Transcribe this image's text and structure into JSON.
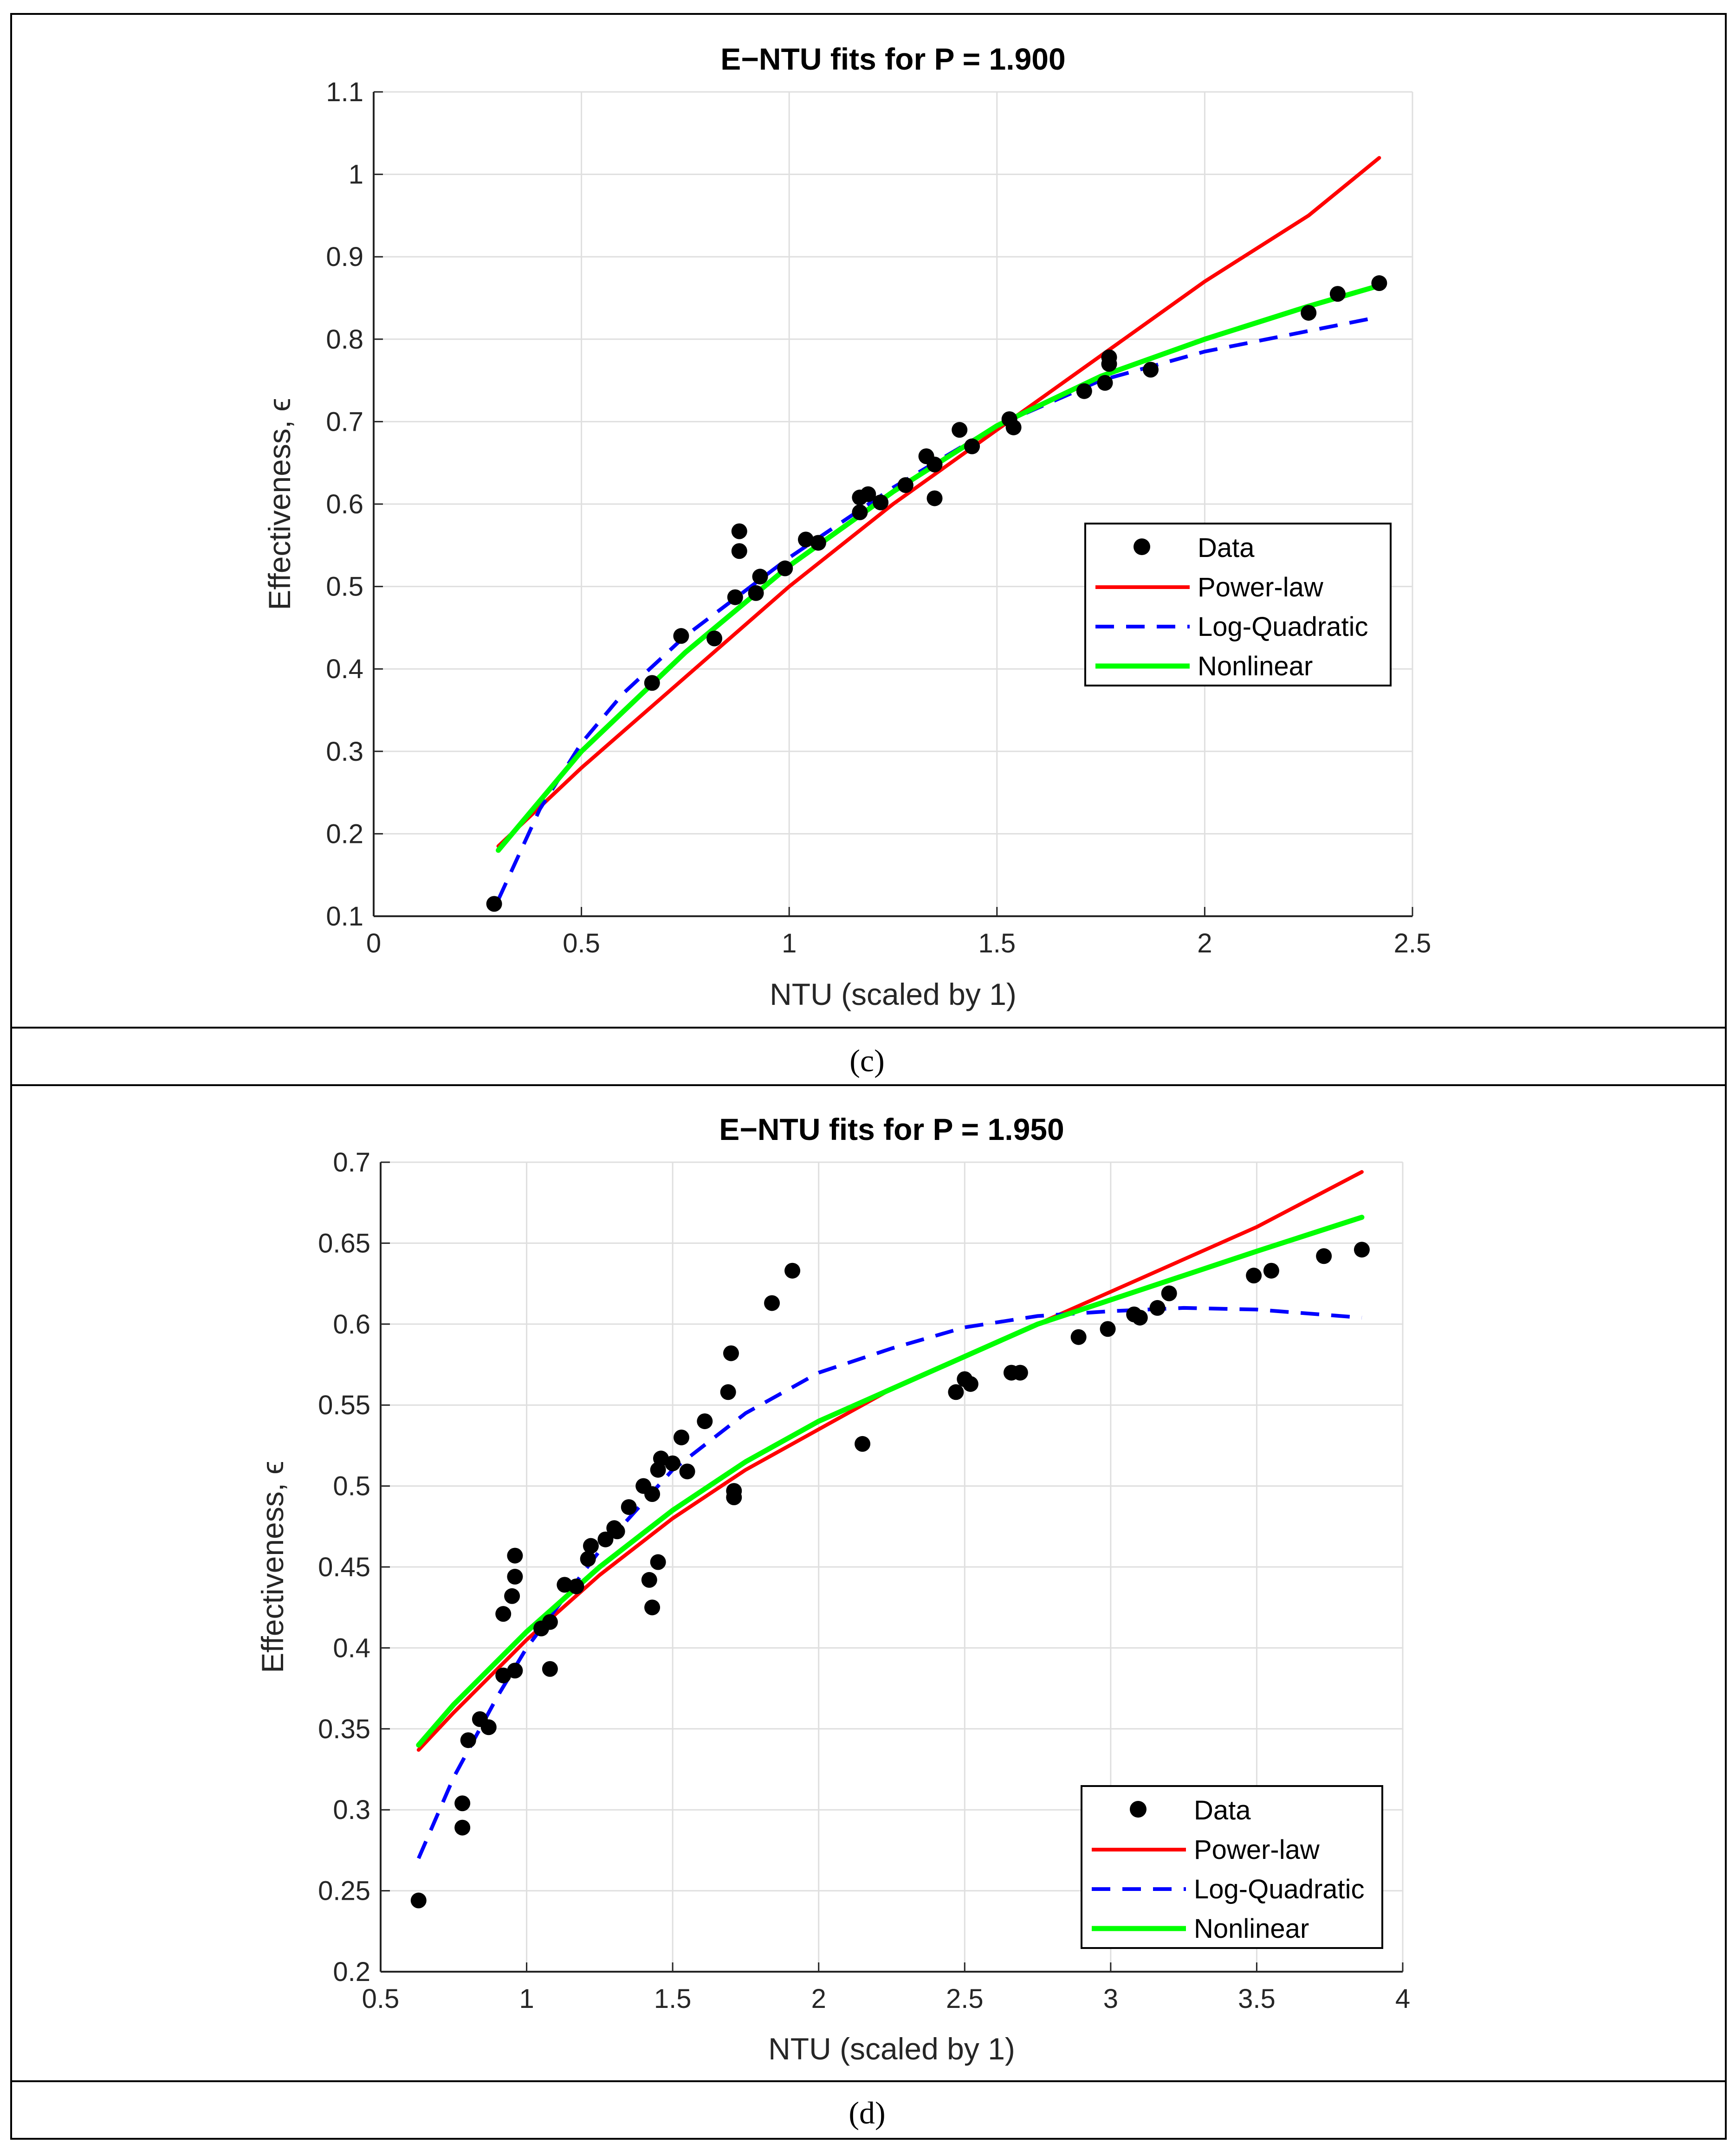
{
  "chart_data": [
    {
      "id": "c",
      "type": "scatter",
      "caption": "(c)",
      "title": "E−NTU fits for P = 1.900",
      "xlabel": "NTU (scaled by 1)",
      "ylabel": "Effectiveness, ϵ",
      "xlim": [
        0,
        2.5
      ],
      "ylim": [
        0.1,
        1.1
      ],
      "xticks": [
        0,
        0.5,
        1,
        1.5,
        2,
        2.5
      ],
      "xtick_labels": [
        "0",
        "0.5",
        "1",
        "1.5",
        "2",
        "2.5"
      ],
      "yticks": [
        0.1,
        0.2,
        0.3,
        0.4,
        0.5,
        0.6,
        0.7,
        0.8,
        0.9,
        1,
        1.1
      ],
      "ytick_labels": [
        "0.1",
        "0.2",
        "0.3",
        "0.4",
        "0.5",
        "0.6",
        "0.7",
        "0.8",
        "0.9",
        "1",
        "1.1"
      ],
      "grid": true,
      "legend_position": "center-right",
      "legend": [
        "Data",
        "Power-law",
        "Log-Quadratic",
        "Nonlinear"
      ],
      "data": {
        "x": [
          0.29,
          0.67,
          0.74,
          0.82,
          0.87,
          0.88,
          0.88,
          0.92,
          0.93,
          0.99,
          1.04,
          1.07,
          1.17,
          1.17,
          1.19,
          1.22,
          1.28,
          1.33,
          1.35,
          1.35,
          1.41,
          1.44,
          1.53,
          1.54,
          1.71,
          1.76,
          1.77,
          1.77,
          1.87,
          2.25,
          2.32,
          2.42
        ],
        "y": [
          0.115,
          0.383,
          0.44,
          0.437,
          0.487,
          0.567,
          0.543,
          0.492,
          0.512,
          0.522,
          0.557,
          0.553,
          0.59,
          0.608,
          0.612,
          0.602,
          0.623,
          0.658,
          0.607,
          0.648,
          0.69,
          0.67,
          0.703,
          0.693,
          0.737,
          0.747,
          0.778,
          0.77,
          0.763,
          0.832,
          0.855,
          0.868
        ]
      },
      "series": [
        {
          "name": "Power-law",
          "color": "#ff0000",
          "style": "solid",
          "x": [
            0.3,
            0.5,
            0.75,
            1,
            1.25,
            1.5,
            1.75,
            2,
            2.25,
            2.42
          ],
          "y": [
            0.185,
            0.28,
            0.39,
            0.5,
            0.6,
            0.69,
            0.78,
            0.87,
            0.95,
            1.02
          ]
        },
        {
          "name": "Log-Quadratic",
          "color": "#0000ff",
          "style": "dashed",
          "x": [
            0.3,
            0.4,
            0.5,
            0.6,
            0.75,
            1,
            1.25,
            1.5,
            1.75,
            2,
            2.25,
            2.42
          ],
          "y": [
            0.12,
            0.23,
            0.31,
            0.37,
            0.44,
            0.535,
            0.62,
            0.695,
            0.75,
            0.785,
            0.81,
            0.827
          ]
        },
        {
          "name": "Nonlinear",
          "color": "#00ff00",
          "style": "solid",
          "x": [
            0.3,
            0.5,
            0.75,
            1,
            1.25,
            1.5,
            1.75,
            2,
            2.25,
            2.42
          ],
          "y": [
            0.18,
            0.3,
            0.42,
            0.525,
            0.615,
            0.695,
            0.755,
            0.8,
            0.84,
            0.865
          ]
        }
      ]
    },
    {
      "id": "d",
      "type": "scatter",
      "caption": "(d)",
      "title": "E−NTU fits for P = 1.950",
      "xlabel": "NTU (scaled by 1)",
      "ylabel": "Effectiveness, ϵ",
      "xlim": [
        0.5,
        4
      ],
      "ylim": [
        0.2,
        0.7
      ],
      "xticks": [
        0.5,
        1,
        1.5,
        2,
        2.5,
        3,
        3.5,
        4
      ],
      "xtick_labels": [
        "0.5",
        "1",
        "1.5",
        "2",
        "2.5",
        "3",
        "3.5",
        "4"
      ],
      "yticks": [
        0.2,
        0.25,
        0.3,
        0.35,
        0.4,
        0.45,
        0.5,
        0.55,
        0.6,
        0.65,
        0.7
      ],
      "ytick_labels": [
        "0.2",
        "0.25",
        "0.3",
        "0.35",
        "0.4",
        "0.45",
        "0.5",
        "0.55",
        "0.6",
        "0.65",
        "0.7"
      ],
      "grid": true,
      "legend_position": "bottom-right",
      "legend": [
        "Data",
        "Power-law",
        "Log-Quadratic",
        "Nonlinear"
      ],
      "data": {
        "x": [
          0.63,
          0.78,
          0.78,
          0.8,
          0.84,
          0.87,
          0.92,
          0.92,
          0.96,
          0.95,
          0.96,
          0.96,
          1.05,
          1.08,
          1.08,
          1.13,
          1.17,
          1.21,
          1.22,
          1.27,
          1.3,
          1.31,
          1.35,
          1.4,
          1.42,
          1.43,
          1.43,
          1.45,
          1.45,
          1.46,
          1.5,
          1.53,
          1.55,
          1.61,
          1.69,
          1.7,
          1.71,
          1.71,
          1.84,
          1.91,
          2.15,
          2.47,
          2.5,
          2.52,
          2.66,
          2.69,
          2.89,
          2.99,
          3.08,
          3.1,
          3.16,
          3.2,
          3.49,
          3.55,
          3.73,
          3.86
        ],
        "y": [
          0.244,
          0.289,
          0.304,
          0.343,
          0.356,
          0.351,
          0.383,
          0.421,
          0.386,
          0.432,
          0.444,
          0.457,
          0.412,
          0.416,
          0.387,
          0.439,
          0.438,
          0.455,
          0.463,
          0.467,
          0.474,
          0.472,
          0.487,
          0.5,
          0.442,
          0.425,
          0.495,
          0.453,
          0.51,
          0.517,
          0.514,
          0.53,
          0.509,
          0.54,
          0.558,
          0.582,
          0.497,
          0.493,
          0.613,
          0.633,
          0.526,
          0.558,
          0.566,
          0.563,
          0.57,
          0.57,
          0.592,
          0.597,
          0.606,
          0.604,
          0.61,
          0.619,
          0.63,
          0.633,
          0.642,
          0.646
        ]
      },
      "series": [
        {
          "name": "Power-law",
          "color": "#ff0000",
          "style": "solid",
          "x": [
            0.63,
            0.75,
            1,
            1.25,
            1.5,
            1.75,
            2,
            2.25,
            2.5,
            2.75,
            3,
            3.25,
            3.5,
            3.86
          ],
          "y": [
            0.337,
            0.36,
            0.405,
            0.445,
            0.48,
            0.51,
            0.535,
            0.56,
            0.58,
            0.6,
            0.62,
            0.64,
            0.66,
            0.694
          ]
        },
        {
          "name": "Log-Quadratic",
          "color": "#0000ff",
          "style": "dashed",
          "x": [
            0.63,
            0.75,
            0.9,
            1,
            1.25,
            1.5,
            1.75,
            2,
            2.25,
            2.5,
            2.75,
            3,
            3.25,
            3.5,
            3.86
          ],
          "y": [
            0.27,
            0.32,
            0.37,
            0.4,
            0.46,
            0.51,
            0.545,
            0.57,
            0.585,
            0.598,
            0.605,
            0.608,
            0.61,
            0.609,
            0.604
          ]
        },
        {
          "name": "Nonlinear",
          "color": "#00ff00",
          "style": "solid",
          "x": [
            0.63,
            0.75,
            1,
            1.25,
            1.5,
            1.75,
            2,
            2.25,
            2.5,
            2.75,
            3,
            3.25,
            3.5,
            3.86
          ],
          "y": [
            0.34,
            0.365,
            0.41,
            0.45,
            0.485,
            0.515,
            0.54,
            0.56,
            0.58,
            0.6,
            0.615,
            0.63,
            0.645,
            0.666
          ]
        }
      ]
    }
  ]
}
